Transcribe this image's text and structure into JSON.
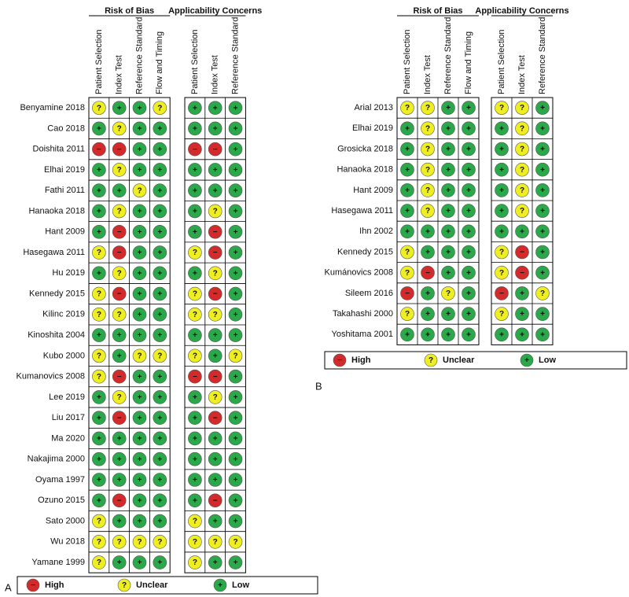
{
  "panels": [
    {
      "label": "A",
      "group_headers": [
        "Risk of Bias",
        "Applicability Concerns"
      ],
      "columns": [
        [
          "Patient Selection",
          "Index Test",
          "Reference Standard",
          "Flow and Timing"
        ],
        [
          "Patient Selection",
          "Index Test",
          "Reference Standard"
        ]
      ],
      "rows": [
        {
          "study": "Benyamine 2018",
          "ratings": [
            "?",
            "+",
            "+",
            "?",
            "+",
            "+",
            "+"
          ]
        },
        {
          "study": "Cao 2018",
          "ratings": [
            "+",
            "?",
            "+",
            "+",
            "+",
            "+",
            "+"
          ]
        },
        {
          "study": "Doishita 2011",
          "ratings": [
            "−",
            "−",
            "+",
            "+",
            "−",
            "−",
            "+"
          ]
        },
        {
          "study": "Elhai 2019",
          "ratings": [
            "+",
            "?",
            "+",
            "+",
            "+",
            "+",
            "+"
          ]
        },
        {
          "study": "Fathi 2011",
          "ratings": [
            "+",
            "+",
            "?",
            "+",
            "+",
            "+",
            "+"
          ]
        },
        {
          "study": "Hanaoka 2018",
          "ratings": [
            "+",
            "?",
            "+",
            "+",
            "+",
            "?",
            "+"
          ]
        },
        {
          "study": "Hant 2009",
          "ratings": [
            "+",
            "−",
            "+",
            "+",
            "+",
            "−",
            "+"
          ]
        },
        {
          "study": "Hasegawa 2011",
          "ratings": [
            "?",
            "−",
            "+",
            "+",
            "?",
            "−",
            "+"
          ]
        },
        {
          "study": "Hu 2019",
          "ratings": [
            "+",
            "?",
            "+",
            "+",
            "+",
            "?",
            "+"
          ]
        },
        {
          "study": "Kennedy 2015",
          "ratings": [
            "?",
            "−",
            "+",
            "+",
            "?",
            "−",
            "+"
          ]
        },
        {
          "study": "Kilinc 2019",
          "ratings": [
            "?",
            "?",
            "+",
            "+",
            "?",
            "?",
            "+"
          ]
        },
        {
          "study": "Kinoshita 2004",
          "ratings": [
            "+",
            "+",
            "+",
            "+",
            "+",
            "+",
            "+"
          ]
        },
        {
          "study": "Kubo 2000",
          "ratings": [
            "?",
            "+",
            "?",
            "?",
            "?",
            "+",
            "?"
          ]
        },
        {
          "study": "Kumanovics 2008",
          "ratings": [
            "?",
            "−",
            "+",
            "+",
            "−",
            "−",
            "+"
          ]
        },
        {
          "study": "Lee 2019",
          "ratings": [
            "+",
            "?",
            "+",
            "+",
            "+",
            "?",
            "+"
          ]
        },
        {
          "study": "Liu 2017",
          "ratings": [
            "+",
            "−",
            "+",
            "+",
            "+",
            "−",
            "+"
          ]
        },
        {
          "study": "Ma 2020",
          "ratings": [
            "+",
            "+",
            "+",
            "+",
            "+",
            "+",
            "+"
          ]
        },
        {
          "study": "Nakajima 2000",
          "ratings": [
            "+",
            "+",
            "+",
            "+",
            "+",
            "+",
            "+"
          ]
        },
        {
          "study": "Oyama 1997",
          "ratings": [
            "+",
            "+",
            "+",
            "+",
            "+",
            "+",
            "+"
          ]
        },
        {
          "study": "Ozuno 2015",
          "ratings": [
            "+",
            "−",
            "+",
            "+",
            "+",
            "−",
            "+"
          ]
        },
        {
          "study": "Sato 2000",
          "ratings": [
            "?",
            "+",
            "+",
            "+",
            "?",
            "+",
            "+"
          ]
        },
        {
          "study": "Wu 2018",
          "ratings": [
            "?",
            "?",
            "?",
            "?",
            "?",
            "?",
            "?"
          ]
        },
        {
          "study": "Yamane 1999",
          "ratings": [
            "?",
            "+",
            "+",
            "+",
            "?",
            "+",
            "+"
          ]
        }
      ],
      "legend": [
        {
          "symbol": "−",
          "label": "High",
          "color": "#d32b2b"
        },
        {
          "symbol": "?",
          "label": "Unclear",
          "color": "#eeee22"
        },
        {
          "symbol": "+",
          "label": "Low",
          "color": "#2ba84a"
        }
      ]
    },
    {
      "label": "B",
      "group_headers": [
        "Risk of Bias",
        "Applicability Concerns"
      ],
      "columns": [
        [
          "Patient Selection",
          "Index Test",
          "Reference Standard",
          "Flow and Timing"
        ],
        [
          "Patient Selection",
          "Index Test",
          "Reference Standard"
        ]
      ],
      "rows": [
        {
          "study": "Arial 2013",
          "ratings": [
            "?",
            "?",
            "+",
            "+",
            "?",
            "?",
            "+"
          ]
        },
        {
          "study": "Elhai 2019",
          "ratings": [
            "+",
            "?",
            "+",
            "+",
            "+",
            "?",
            "+"
          ]
        },
        {
          "study": "Grosicka 2018",
          "ratings": [
            "+",
            "?",
            "+",
            "+",
            "+",
            "?",
            "+"
          ]
        },
        {
          "study": "Hanaoka 2018",
          "ratings": [
            "+",
            "?",
            "+",
            "+",
            "+",
            "?",
            "+"
          ]
        },
        {
          "study": "Hant 2009",
          "ratings": [
            "+",
            "?",
            "+",
            "+",
            "+",
            "?",
            "+"
          ]
        },
        {
          "study": "Hasegawa 2011",
          "ratings": [
            "+",
            "?",
            "+",
            "+",
            "+",
            "?",
            "+"
          ]
        },
        {
          "study": "Ihn 2002",
          "ratings": [
            "+",
            "+",
            "+",
            "+",
            "+",
            "+",
            "+"
          ]
        },
        {
          "study": "Kennedy 2015",
          "ratings": [
            "?",
            "+",
            "+",
            "+",
            "?",
            "−",
            "+"
          ]
        },
        {
          "study": "Kumánovics 2008",
          "ratings": [
            "?",
            "−",
            "+",
            "+",
            "?",
            "−",
            "+"
          ]
        },
        {
          "study": "Sileem 2016",
          "ratings": [
            "−",
            "+",
            "?",
            "+",
            "−",
            "+",
            "?"
          ]
        },
        {
          "study": "Takahashi 2000",
          "ratings": [
            "?",
            "+",
            "+",
            "+",
            "?",
            "+",
            "+"
          ]
        },
        {
          "study": "Yoshitama 2001",
          "ratings": [
            "+",
            "+",
            "+",
            "+",
            "+",
            "+",
            "+"
          ]
        }
      ],
      "legend": [
        {
          "symbol": "−",
          "label": "High",
          "color": "#d32b2b"
        },
        {
          "symbol": "?",
          "label": "Unclear",
          "color": "#eeee22"
        },
        {
          "symbol": "+",
          "label": "Low",
          "color": "#2ba84a"
        }
      ]
    }
  ]
}
